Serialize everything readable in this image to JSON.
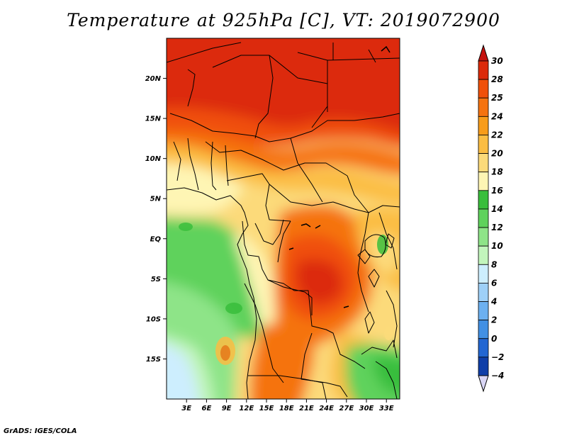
{
  "title": "Temperature at 925hPa [C], VT: 2019072900",
  "credit": "GrADS: IGES/COLA",
  "map": {
    "lat_range": [
      -20,
      25
    ],
    "lon_range": [
      0,
      35
    ],
    "lat_labels": [
      {
        "value": 20,
        "label": "20N"
      },
      {
        "value": 15,
        "label": "15N"
      },
      {
        "value": 10,
        "label": "10N"
      },
      {
        "value": 5,
        "label": "5N"
      },
      {
        "value": 0,
        "label": "EQ"
      },
      {
        "value": -5,
        "label": "5S"
      },
      {
        "value": -10,
        "label": "10S"
      },
      {
        "value": -15,
        "label": "15S"
      }
    ],
    "lon_labels": [
      {
        "value": 3,
        "label": "3E"
      },
      {
        "value": 6,
        "label": "6E"
      },
      {
        "value": 9,
        "label": "9E"
      },
      {
        "value": 12,
        "label": "12E"
      },
      {
        "value": 15,
        "label": "15E"
      },
      {
        "value": 18,
        "label": "18E"
      },
      {
        "value": 21,
        "label": "21E"
      },
      {
        "value": 24,
        "label": "24E"
      },
      {
        "value": 27,
        "label": "27E"
      },
      {
        "value": 30,
        "label": "30E"
      },
      {
        "value": 33,
        "label": "33E"
      }
    ]
  },
  "colorbar": {
    "levels": [
      "30",
      "28",
      "25",
      "24",
      "22",
      "20",
      "18",
      "16",
      "14",
      "12",
      "10",
      "8",
      "6",
      "4",
      "2",
      "0",
      "−2",
      "−4"
    ],
    "colors_top_to_bottom": [
      "#dc2a0a",
      "#f0500a",
      "#f57310",
      "#f89c1a",
      "#fbbd43",
      "#fcda7a",
      "#fef5b4",
      "#39be3c",
      "#5fd25c",
      "#8ee488",
      "#c2f5bc",
      "#cdeefe",
      "#9ed0f8",
      "#6cb0f0",
      "#4290e4",
      "#2266d2",
      "#0f3ea8",
      "#090a78",
      "#d9d6f5"
    ],
    "top_cap_color": "#c4110e",
    "bottom_cap_color": "#d9d6f5"
  }
}
